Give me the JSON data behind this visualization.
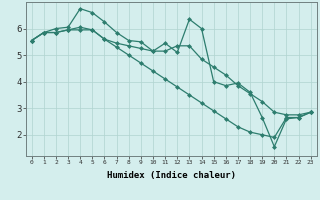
{
  "xlabel": "Humidex (Indice chaleur)",
  "background_color": "#d4eeed",
  "line_color": "#2d7d6e",
  "grid_color": "#b0d4d0",
  "xlim": [
    -0.5,
    23.5
  ],
  "ylim": [
    1.2,
    7.0
  ],
  "xticks": [
    0,
    1,
    2,
    3,
    4,
    5,
    6,
    7,
    8,
    9,
    10,
    11,
    12,
    13,
    14,
    15,
    16,
    17,
    18,
    19,
    20,
    21,
    22,
    23
  ],
  "yticks": [
    2,
    3,
    4,
    5,
    6
  ],
  "line1_x": [
    0,
    1,
    2,
    3,
    4,
    5,
    6,
    7,
    8,
    9,
    10,
    11,
    12,
    13,
    14,
    15,
    16,
    17,
    18,
    19,
    20,
    21,
    22,
    23
  ],
  "line1_y": [
    5.55,
    5.85,
    6.0,
    6.05,
    6.75,
    6.6,
    6.25,
    5.85,
    5.55,
    5.5,
    5.15,
    5.45,
    5.1,
    6.35,
    6.0,
    4.0,
    3.85,
    3.95,
    3.6,
    2.65,
    1.55,
    2.6,
    2.65,
    2.85
  ],
  "line2_x": [
    0,
    1,
    2,
    3,
    4,
    5,
    6,
    7,
    8,
    9,
    10,
    11,
    12,
    13,
    14,
    15,
    16,
    17,
    18,
    19,
    20,
    21,
    22,
    23
  ],
  "line2_y": [
    5.55,
    5.85,
    5.85,
    5.95,
    6.05,
    5.95,
    5.6,
    5.45,
    5.35,
    5.25,
    5.15,
    5.15,
    5.35,
    5.35,
    4.85,
    4.55,
    4.25,
    3.85,
    3.55,
    3.25,
    2.85,
    2.75,
    2.75,
    2.85
  ],
  "line3_x": [
    0,
    1,
    2,
    3,
    4,
    5,
    6,
    7,
    8,
    9,
    10,
    11,
    12,
    13,
    14,
    15,
    16,
    17,
    18,
    19,
    20,
    21,
    22,
    23
  ],
  "line3_y": [
    5.55,
    5.85,
    5.85,
    5.95,
    5.95,
    5.95,
    5.6,
    5.3,
    5.0,
    4.7,
    4.4,
    4.1,
    3.8,
    3.5,
    3.2,
    2.9,
    2.6,
    2.3,
    2.1,
    2.0,
    1.9,
    2.65,
    2.65,
    2.85
  ]
}
